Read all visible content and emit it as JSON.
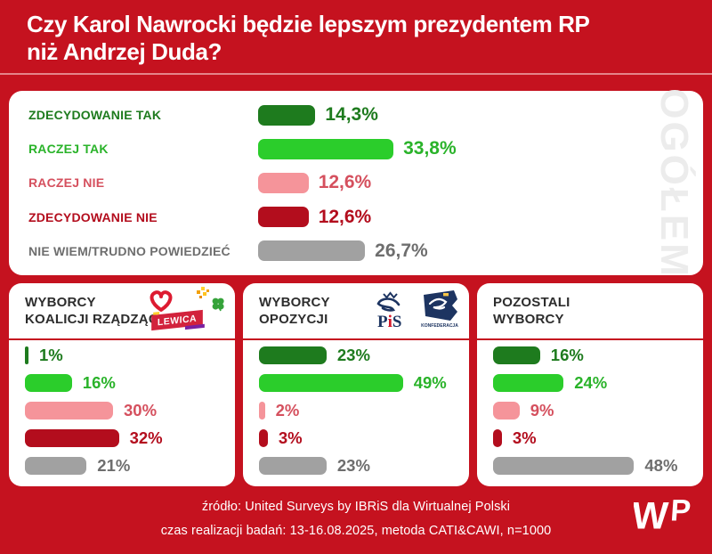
{
  "title": {
    "line1": "Czy Karol Nawrocki będzie lepszym prezydentem RP",
    "line2": "niż Andrzej Duda?"
  },
  "colors": {
    "background": "#c5121f",
    "card": "#ffffff",
    "divider": "#c5121f",
    "title_text": "#ffffff",
    "header_text": "#2d2d2d",
    "watermark": "#ececec",
    "footer_text": "#ffffff",
    "bar": {
      "dark_green": "#1e7b1e",
      "green": "#2bcd2b",
      "pink": "#f5949a",
      "dark_red": "#b30d1d",
      "gray": "#a1a1a1"
    },
    "text": {
      "dark_green": "#1e7b1e",
      "green": "#2ab32a",
      "pink": "#d5505e",
      "dark_red": "#b30d1d",
      "gray": "#6e6e6e"
    }
  },
  "overall": {
    "watermark": "OGÓŁEM",
    "rows": [
      {
        "label": "ZDECYDOWANIE TAK",
        "value": "14,3%",
        "pct": 14.3,
        "color": "dark_green"
      },
      {
        "label": "RACZEJ TAK",
        "value": "33,8%",
        "pct": 33.8,
        "color": "green"
      },
      {
        "label": "RACZEJ NIE",
        "value": "12,6%",
        "pct": 12.6,
        "color": "pink"
      },
      {
        "label": "ZDECYDOWANIE NIE",
        "value": "12,6%",
        "pct": 12.6,
        "color": "dark_red"
      },
      {
        "label": "NIE WIEM/TRUDNO POWIEDZIEĆ",
        "value": "26,7%",
        "pct": 26.7,
        "color": "gray"
      }
    ]
  },
  "groups": [
    {
      "title": "WYBORCY\nKOALICJI RZĄDZĄCEJ",
      "logos": [
        {
          "name": "ko-heart-logo"
        },
        {
          "name": "polska-2050-logo"
        },
        {
          "name": "psl-clover-logo"
        },
        {
          "name": "lewica-logo",
          "text": "LEWICA"
        }
      ],
      "rows": [
        {
          "value": "1%",
          "pct": 1,
          "color": "dark_green"
        },
        {
          "value": "16%",
          "pct": 16,
          "color": "green"
        },
        {
          "value": "30%",
          "pct": 30,
          "color": "pink"
        },
        {
          "value": "32%",
          "pct": 32,
          "color": "dark_red"
        },
        {
          "value": "21%",
          "pct": 21,
          "color": "gray"
        }
      ]
    },
    {
      "title": "WYBORCY\nOPOZYCJI",
      "logos": [
        {
          "name": "pis-logo",
          "letters": [
            "P",
            "i",
            "S"
          ]
        },
        {
          "name": "konfederacja-logo",
          "text": "KONFEDERACJA"
        }
      ],
      "rows": [
        {
          "value": "23%",
          "pct": 23,
          "color": "dark_green"
        },
        {
          "value": "49%",
          "pct": 49,
          "color": "green"
        },
        {
          "value": "2%",
          "pct": 2,
          "color": "pink"
        },
        {
          "value": "3%",
          "pct": 3,
          "color": "dark_red"
        },
        {
          "value": "23%",
          "pct": 23,
          "color": "gray"
        }
      ]
    },
    {
      "title": "POZOSTALI\nWYBORCY",
      "logos": [],
      "rows": [
        {
          "value": "16%",
          "pct": 16,
          "color": "dark_green"
        },
        {
          "value": "24%",
          "pct": 24,
          "color": "green"
        },
        {
          "value": "9%",
          "pct": 9,
          "color": "pink"
        },
        {
          "value": "3%",
          "pct": 3,
          "color": "dark_red"
        },
        {
          "value": "48%",
          "pct": 48,
          "color": "gray"
        }
      ]
    }
  ],
  "footer": {
    "source": "źródło: United Surveys by IBRiS dla Wirtualnej Polski",
    "details": "czas realizacji badań: 13-16.08.2025, metoda CATI&CAWI, n=1000",
    "logo": "WP"
  },
  "chart_data": [
    {
      "type": "bar",
      "orientation": "horizontal",
      "title": "OGÓŁEM — Czy Karol Nawrocki będzie lepszym prezydentem RP niż Andrzej Duda?",
      "categories": [
        "ZDECYDOWANIE TAK",
        "RACZEJ TAK",
        "RACZEJ NIE",
        "ZDECYDOWANIE NIE",
        "NIE WIEM/TRUDNO POWIEDZIEĆ"
      ],
      "values": [
        14.3,
        33.8,
        12.6,
        12.6,
        26.7
      ],
      "unit": "%"
    },
    {
      "type": "bar",
      "orientation": "horizontal",
      "title": "WYBORCY KOALICJI RZĄDZĄCEJ",
      "categories": [
        "ZDECYDOWANIE TAK",
        "RACZEJ TAK",
        "RACZEJ NIE",
        "ZDECYDOWANIE NIE",
        "NIE WIEM/TRUDNO POWIEDZIEĆ"
      ],
      "values": [
        1,
        16,
        30,
        32,
        21
      ],
      "unit": "%"
    },
    {
      "type": "bar",
      "orientation": "horizontal",
      "title": "WYBORCY OPOZYCJI",
      "categories": [
        "ZDECYDOWANIE TAK",
        "RACZEJ TAK",
        "RACZEJ NIE",
        "ZDECYDOWANIE NIE",
        "NIE WIEM/TRUDNO POWIEDZIEĆ"
      ],
      "values": [
        23,
        49,
        2,
        3,
        23
      ],
      "unit": "%"
    },
    {
      "type": "bar",
      "orientation": "horizontal",
      "title": "POZOSTALI WYBORCY",
      "categories": [
        "ZDECYDOWANIE TAK",
        "RACZEJ TAK",
        "RACZEJ NIE",
        "ZDECYDOWANIE NIE",
        "NIE WIEM/TRUDNO POWIEDZIEĆ"
      ],
      "values": [
        16,
        24,
        9,
        3,
        48
      ],
      "unit": "%"
    }
  ]
}
